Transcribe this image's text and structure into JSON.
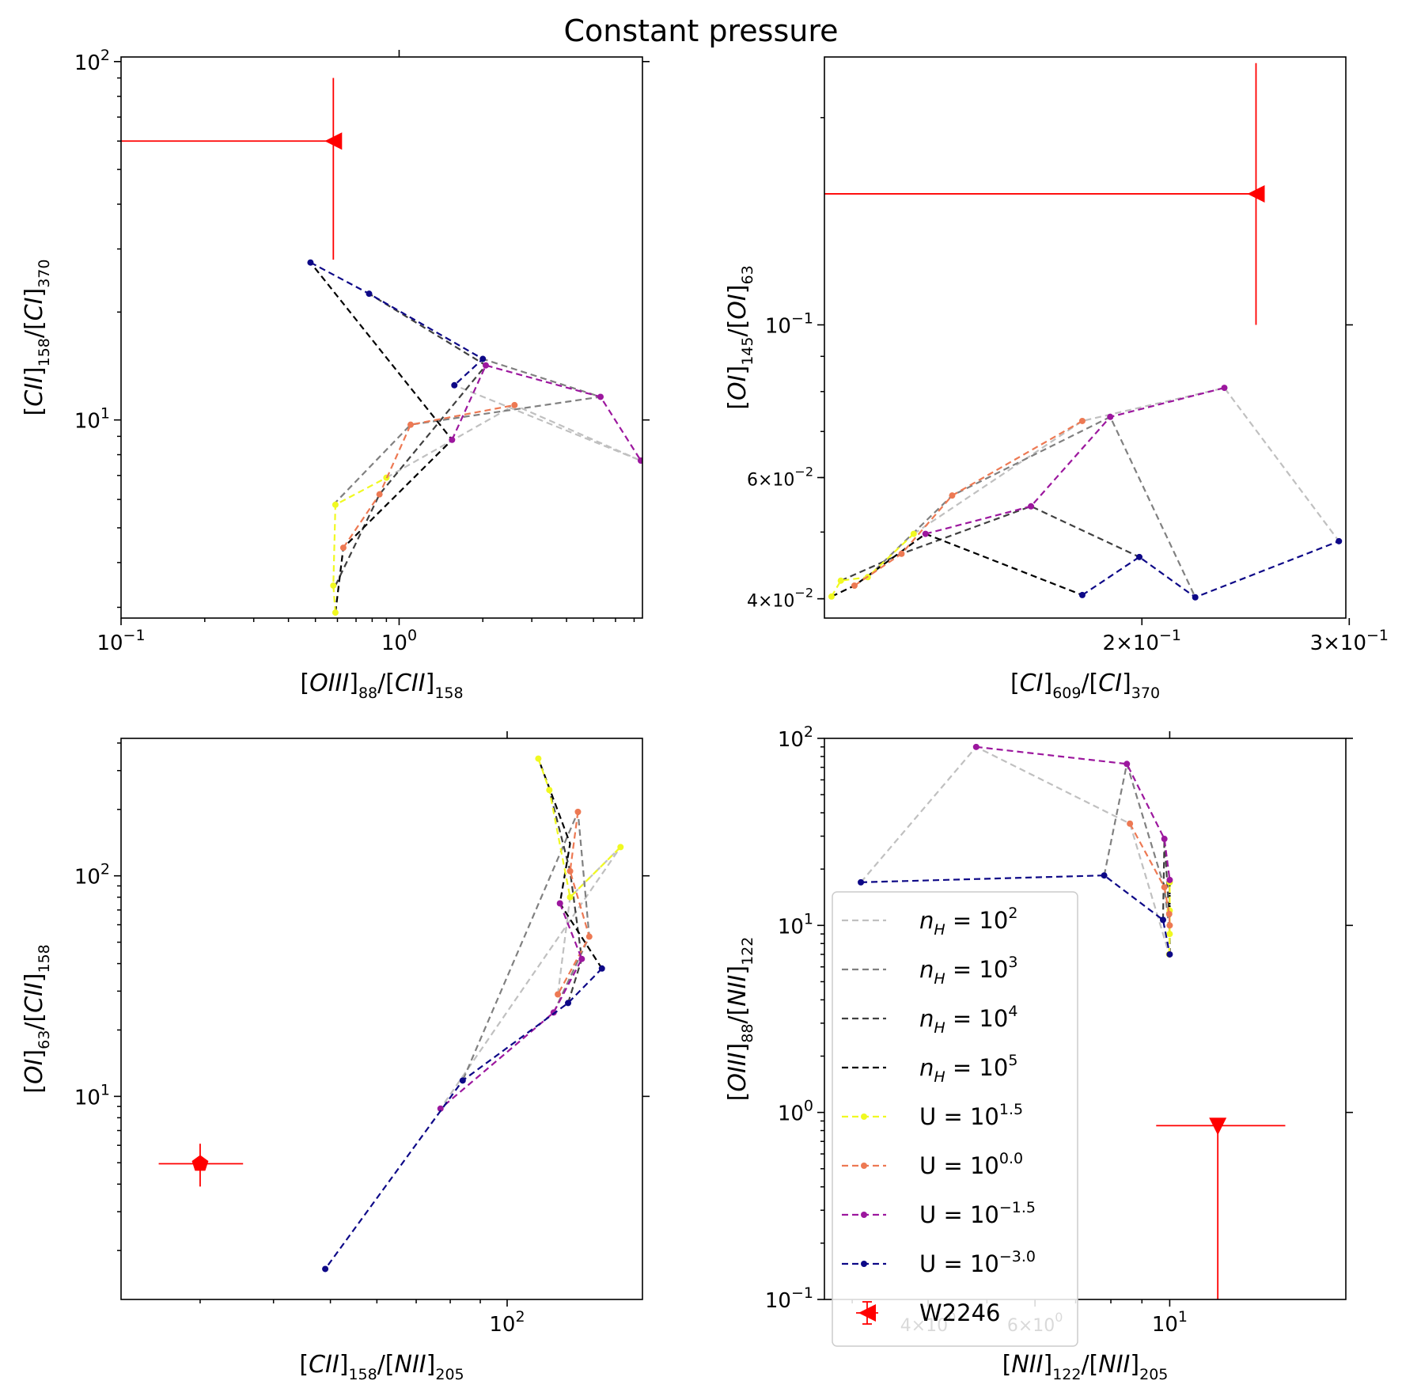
{
  "title": "Constant pressure",
  "colors": {
    "nH_1e2": "#c0c0c0",
    "nH_1e3": "#808080",
    "nH_1e4": "#404040",
    "nH_1e5": "#000000",
    "U_1.5": "#f0f921",
    "U_0.0": "#ed7953",
    "U_-1.5": "#9c179e",
    "U_-3.0": "#0d0887",
    "obs": "#ff0000"
  },
  "legend": {
    "entries": [
      {
        "key": "nH_1e2",
        "base": "n",
        "sub": "H",
        "eq": " = 10",
        "exp": "2",
        "marker": false
      },
      {
        "key": "nH_1e3",
        "base": "n",
        "sub": "H",
        "eq": " = 10",
        "exp": "3",
        "marker": false
      },
      {
        "key": "nH_1e4",
        "base": "n",
        "sub": "H",
        "eq": " = 10",
        "exp": "4",
        "marker": false
      },
      {
        "key": "nH_1e5",
        "base": "n",
        "sub": "H",
        "eq": " = 10",
        "exp": "5",
        "marker": false
      },
      {
        "key": "U_1.5",
        "base": "U = 10",
        "exp": "1.5",
        "marker": true
      },
      {
        "key": "U_0.0",
        "base": "U = 10",
        "exp": "0.0",
        "marker": true
      },
      {
        "key": "U_-1.5",
        "base": "U = 10",
        "exp": "−1.5",
        "marker": true
      },
      {
        "key": "U_-3.0",
        "base": "U = 10",
        "exp": "−3.0",
        "marker": true
      },
      {
        "key": "obs",
        "base": "W2246",
        "obs": true
      }
    ]
  },
  "chart_data": [
    {
      "id": "tl",
      "type": "line",
      "xscale": "log",
      "yscale": "log",
      "xlim": [
        0.1,
        7.5
      ],
      "ylim": [
        2.8,
        103
      ],
      "xlabel": {
        "main": [
          "[",
          "OIII",
          "]"
        ],
        "sub": "88",
        "rest": [
          "/[",
          "CII",
          "]"
        ],
        "sub2": "158"
      },
      "ylabel": {
        "main": [
          "[",
          "CII",
          "]"
        ],
        "sub": "158",
        "rest": [
          "/[",
          "CI",
          "]"
        ],
        "sub2": "370"
      },
      "xticks": [
        {
          "v": 0.1,
          "m": "10",
          "e": "−1"
        },
        {
          "v": 1,
          "m": "10",
          "e": "0"
        }
      ],
      "yticks": [
        {
          "v": 10,
          "m": "10",
          "e": "1"
        },
        {
          "v": 100,
          "m": "10",
          "e": "2"
        }
      ],
      "top_ticks": [
        1
      ],
      "right_ticks": [
        10,
        100
      ],
      "U_series": [
        {
          "key": "U_1.5",
          "points": [
            [
              0.59,
              2.9
            ],
            [
              0.58,
              3.45
            ],
            [
              0.59,
              5.8
            ],
            [
              0.9,
              6.9
            ]
          ]
        },
        {
          "key": "U_0.0",
          "points": [
            [
              0.63,
              4.4
            ],
            [
              0.85,
              6.2
            ],
            [
              1.1,
              9.7
            ],
            [
              2.6,
              11.0
            ]
          ]
        },
        {
          "key": "U_-1.5",
          "points": [
            [
              1.55,
              8.8
            ],
            [
              2.05,
              14.2
            ],
            [
              5.3,
              11.6
            ],
            [
              7.4,
              7.7
            ]
          ]
        },
        {
          "key": "U_-3.0",
          "points": [
            [
              0.48,
              27.5
            ],
            [
              0.78,
              22.5
            ],
            [
              2.0,
              14.8
            ],
            [
              1.58,
              12.5
            ]
          ]
        }
      ],
      "nH_series": [
        {
          "key": "nH_1e2",
          "points": [
            [
              0.9,
              6.9
            ],
            [
              2.6,
              11.0
            ],
            [
              7.4,
              7.7
            ],
            [
              1.58,
              12.5
            ]
          ]
        },
        {
          "key": "nH_1e3",
          "points": [
            [
              0.58,
              5.8
            ],
            [
              1.1,
              9.7
            ],
            [
              5.3,
              11.6
            ],
            [
              2.0,
              14.8
            ]
          ]
        },
        {
          "key": "nH_1e4",
          "points": [
            [
              0.59,
              3.45
            ],
            [
              0.85,
              6.2
            ],
            [
              2.05,
              14.2
            ],
            [
              0.78,
              22.5
            ]
          ]
        },
        {
          "key": "nH_1e5",
          "points": [
            [
              0.59,
              2.9
            ],
            [
              0.63,
              4.4
            ],
            [
              1.55,
              8.8
            ],
            [
              0.48,
              27.5
            ]
          ]
        }
      ],
      "observation": {
        "x": 0.58,
        "y": 60,
        "xerr_to": 0.1,
        "yerr": [
          28,
          90
        ],
        "marker": "triangle-left"
      }
    },
    {
      "id": "tr",
      "type": "line",
      "xscale": "log",
      "yscale": "log",
      "xlim": [
        0.1075,
        0.298
      ],
      "ylim": [
        0.0375,
        0.245
      ],
      "xlabel": {
        "main": [
          "[",
          "CI",
          "]"
        ],
        "sub": "609",
        "rest": [
          "/[",
          "CI",
          "]"
        ],
        "sub2": "370"
      },
      "ylabel": {
        "main": [
          "[",
          "OI",
          "]"
        ],
        "sub": "145",
        "rest": [
          "/[",
          "OI",
          "]"
        ],
        "sub2": "63"
      },
      "xticks": [
        {
          "v": 0.2,
          "m": "2×10",
          "e": "−1"
        },
        {
          "v": 0.3,
          "m": "3×10",
          "e": "−1"
        }
      ],
      "yticks": [
        {
          "v": 0.04,
          "m": "4×10",
          "e": "−2",
          "small": true
        },
        {
          "v": 0.06,
          "m": "6×10",
          "e": "−2",
          "small": true
        },
        {
          "v": 0.1,
          "m": "10",
          "e": "−1"
        }
      ],
      "top_ticks": [],
      "right_ticks": [
        0.1
      ],
      "U_series": [
        {
          "key": "U_1.5",
          "points": [
            [
              0.109,
              0.0403
            ],
            [
              0.111,
              0.0425
            ],
            [
              0.117,
              0.043
            ],
            [
              0.128,
              0.0497
            ]
          ]
        },
        {
          "key": "U_0.0",
          "points": [
            [
              0.114,
              0.0418
            ],
            [
              0.125,
              0.0465
            ],
            [
              0.138,
              0.0565
            ],
            [
              0.178,
              0.0725
            ]
          ]
        },
        {
          "key": "U_-1.5",
          "points": [
            [
              0.131,
              0.0497
            ],
            [
              0.161,
              0.0545
            ],
            [
              0.188,
              0.0735
            ],
            [
              0.235,
              0.081
            ]
          ]
        },
        {
          "key": "U_-3.0",
          "points": [
            [
              0.178,
              0.0405
            ],
            [
              0.199,
              0.046
            ],
            [
              0.222,
              0.0402
            ],
            [
              0.294,
              0.0485
            ]
          ]
        }
      ],
      "nH_series": [
        {
          "key": "nH_1e2",
          "points": [
            [
              0.128,
              0.0497
            ],
            [
              0.178,
              0.0725
            ],
            [
              0.235,
              0.081
            ],
            [
              0.294,
              0.0485
            ]
          ]
        },
        {
          "key": "nH_1e3",
          "points": [
            [
              0.117,
              0.043
            ],
            [
              0.138,
              0.0565
            ],
            [
              0.188,
              0.0735
            ],
            [
              0.222,
              0.0402
            ]
          ]
        },
        {
          "key": "nH_1e4",
          "points": [
            [
              0.111,
              0.0425
            ],
            [
              0.125,
              0.0465
            ],
            [
              0.161,
              0.0545
            ],
            [
              0.199,
              0.046
            ]
          ]
        },
        {
          "key": "nH_1e5",
          "points": [
            [
              0.109,
              0.0403
            ],
            [
              0.114,
              0.0418
            ],
            [
              0.131,
              0.0497
            ],
            [
              0.178,
              0.0405
            ]
          ]
        }
      ],
      "observation": {
        "x": 0.25,
        "y": 0.155,
        "xerr_to": 0.1075,
        "yerr": [
          0.1,
          0.24
        ],
        "marker": "triangle-left"
      }
    },
    {
      "id": "bl",
      "type": "line",
      "xscale": "log",
      "yscale": "log",
      "xlim": [
        22,
        170
      ],
      "ylim": [
        1.2,
        420
      ],
      "xlabel": {
        "main": [
          "[",
          "CII",
          "]"
        ],
        "sub": "158",
        "rest": [
          "/[",
          "NII",
          "]"
        ],
        "sub2": "205"
      },
      "ylabel": {
        "main": [
          "[",
          "OI",
          "]"
        ],
        "sub": "63",
        "rest": [
          "/[",
          "CII",
          "]"
        ],
        "sub2": "158"
      },
      "xticks": [
        {
          "v": 100,
          "m": "10",
          "e": "2"
        }
      ],
      "yticks": [
        {
          "v": 10,
          "m": "10",
          "e": "1"
        },
        {
          "v": 100,
          "m": "10",
          "e": "2"
        }
      ],
      "top_ticks": [
        100
      ],
      "right_ticks": [
        10,
        100
      ],
      "U_series": [
        {
          "key": "U_1.5",
          "points": [
            [
              113,
              340
            ],
            [
              118,
              245
            ],
            [
              128,
              80
            ],
            [
              156,
              135
            ]
          ]
        },
        {
          "key": "U_0.0",
          "points": [
            [
              132,
              195
            ],
            [
              128,
              105
            ],
            [
              138,
              53
            ],
            [
              122,
              29
            ]
          ]
        },
        {
          "key": "U_-1.5",
          "points": [
            [
              123,
              75
            ],
            [
              134,
              42
            ],
            [
              120,
              24
            ],
            [
              77,
              8.8
            ]
          ]
        },
        {
          "key": "U_-3.0",
          "points": [
            [
              145,
              38
            ],
            [
              127,
              26.5
            ],
            [
              84,
              11.8
            ],
            [
              49,
              1.65
            ]
          ]
        }
      ],
      "nH_series": [
        {
          "key": "nH_1e2",
          "points": [
            [
              122,
              29
            ],
            [
              128,
              80
            ],
            [
              156,
              135
            ],
            [
              77,
              8.8
            ]
          ]
        },
        {
          "key": "nH_1e3",
          "points": [
            [
              120,
              24
            ],
            [
              138,
              53
            ],
            [
              132,
              195
            ],
            [
              84,
              11.8
            ]
          ]
        },
        {
          "key": "nH_1e4",
          "points": [
            [
              127,
              26.5
            ],
            [
              134,
              42
            ],
            [
              128,
              105
            ],
            [
              118,
              245
            ]
          ]
        },
        {
          "key": "nH_1e5",
          "points": [
            [
              145,
              38
            ],
            [
              123,
              75
            ],
            [
              128,
              140
            ],
            [
              113,
              340
            ]
          ]
        }
      ],
      "observation": {
        "x": 30,
        "y": 4.95,
        "xerr": [
          25.5,
          35.5
        ],
        "yerr": [
          3.9,
          6.1
        ],
        "marker": "pentagon"
      }
    },
    {
      "id": "br",
      "type": "line",
      "xscale": "log",
      "yscale": "log",
      "xlim": [
        2.7,
        19.5
      ],
      "ylim": [
        0.1,
        100
      ],
      "xlabel": {
        "main": [
          "[",
          "NII",
          "]"
        ],
        "sub": "122",
        "rest": [
          "/[",
          "NII",
          "]"
        ],
        "sub2": "205"
      },
      "ylabel": {
        "main": [
          "[",
          "OIII",
          "]"
        ],
        "sub": "88",
        "rest": [
          "/[",
          "NII",
          "]"
        ],
        "sub2": "122"
      },
      "xticks": [
        {
          "v": 4,
          "m": "4×10",
          "e": "0",
          "small": true
        },
        {
          "v": 6,
          "m": "6×10",
          "e": "0",
          "small": true
        },
        {
          "v": 10,
          "m": "10",
          "e": "1"
        }
      ],
      "yticks": [
        {
          "v": 0.1,
          "m": "10",
          "e": "−1"
        },
        {
          "v": 1,
          "m": "10",
          "e": "0"
        },
        {
          "v": 10,
          "m": "10",
          "e": "1"
        },
        {
          "v": 100,
          "m": "10",
          "e": "2"
        }
      ],
      "top_ticks": [
        10
      ],
      "right_ticks": [
        1,
        10,
        100
      ],
      "U_series": [
        {
          "key": "U_1.5",
          "points": [
            [
              9.98,
              7
            ],
            [
              10.0,
              9
            ],
            [
              10.0,
              12
            ],
            [
              10.0,
              17
            ]
          ]
        },
        {
          "key": "U_0.0",
          "points": [
            [
              8.6,
              35
            ],
            [
              9.8,
              16
            ],
            [
              9.98,
              11.5
            ],
            [
              10.0,
              10
            ]
          ]
        },
        {
          "key": "U_-1.5",
          "points": [
            [
              4.8,
              90
            ],
            [
              8.5,
              73
            ],
            [
              9.8,
              29
            ],
            [
              10.0,
              17.5
            ]
          ]
        },
        {
          "key": "U_-3.0",
          "points": [
            [
              3.1,
              17
            ],
            [
              7.8,
              18.5
            ],
            [
              9.75,
              10.7
            ],
            [
              10.0,
              7
            ]
          ]
        }
      ],
      "nH_series": [
        {
          "key": "nH_1e2",
          "points": [
            [
              3.1,
              17
            ],
            [
              4.8,
              90
            ],
            [
              8.6,
              35
            ],
            [
              9.98,
              7
            ]
          ]
        },
        {
          "key": "nH_1e3",
          "points": [
            [
              7.8,
              18.5
            ],
            [
              8.5,
              73
            ],
            [
              9.8,
              16
            ],
            [
              10.0,
              9
            ]
          ]
        },
        {
          "key": "nH_1e4",
          "points": [
            [
              9.75,
              10.7
            ],
            [
              9.8,
              29
            ],
            [
              9.98,
              11.5
            ],
            [
              10.0,
              12
            ]
          ]
        },
        {
          "key": "nH_1e5",
          "points": [
            [
              10.0,
              7
            ],
            [
              10.0,
              17.5
            ],
            [
              10.0,
              10
            ],
            [
              10.0,
              17
            ]
          ]
        }
      ],
      "observation": {
        "x": 12,
        "y": 0.85,
        "xerr": [
          9.5,
          15.5
        ],
        "yerr_to": 0.1,
        "marker": "triangle-down"
      }
    }
  ]
}
